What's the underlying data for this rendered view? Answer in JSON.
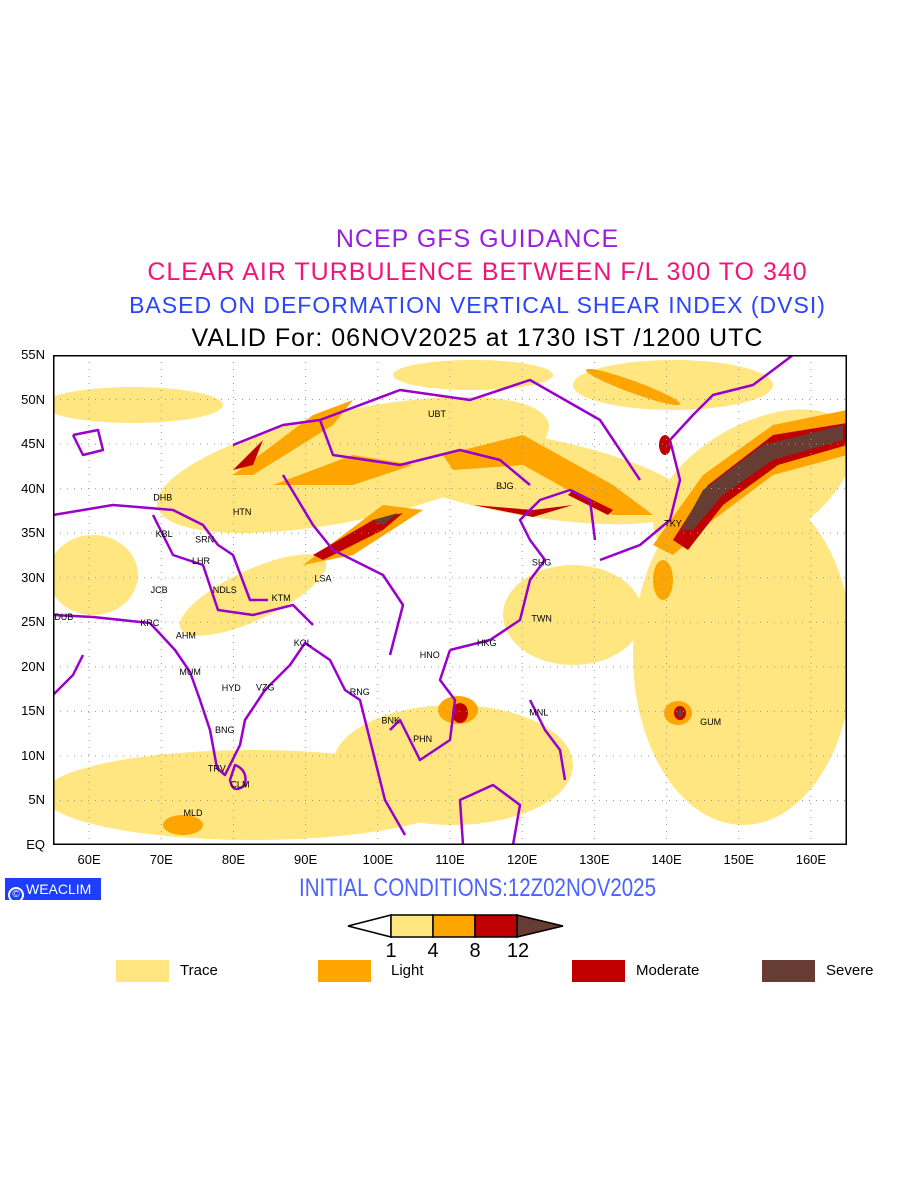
{
  "titles": {
    "line1": "NCEP GFS GUIDANCE",
    "line2": "CLEAR AIR TURBULENCE BETWEEN F/L 300 TO 340",
    "line3": "BASED ON DEFORMATION VERTICAL SHEAR INDEX (DVSI)",
    "line4": "VALID For: 06NOV2025 at 1730 IST /1200 UTC"
  },
  "colors": {
    "title1": "#9a1ee0",
    "title2": "#f0157a",
    "title3": "#2a44ff",
    "title4": "#000000",
    "coast": "#9900cc",
    "trace": "#ffe680",
    "light": "#ffa500",
    "moderate": "#c00000",
    "severe": "#663c33",
    "badge": "#1d3dff"
  },
  "map": {
    "lon_range": [
      55,
      165
    ],
    "lat_range": [
      0,
      55
    ],
    "lat_labels": [
      {
        "v": 55,
        "t": "55N"
      },
      {
        "v": 50,
        "t": "50N"
      },
      {
        "v": 45,
        "t": "45N"
      },
      {
        "v": 40,
        "t": "40N"
      },
      {
        "v": 35,
        "t": "35N"
      },
      {
        "v": 30,
        "t": "30N"
      },
      {
        "v": 25,
        "t": "25N"
      },
      {
        "v": 20,
        "t": "20N"
      },
      {
        "v": 15,
        "t": "15N"
      },
      {
        "v": 10,
        "t": "10N"
      },
      {
        "v": 5,
        "t": "5N"
      },
      {
        "v": 0,
        "t": "EQ"
      }
    ],
    "lon_labels": [
      {
        "v": 60,
        "t": "60E"
      },
      {
        "v": 70,
        "t": "70E"
      },
      {
        "v": 80,
        "t": "80E"
      },
      {
        "v": 90,
        "t": "90E"
      },
      {
        "v": 100,
        "t": "100E"
      },
      {
        "v": 110,
        "t": "110E"
      },
      {
        "v": 120,
        "t": "120E"
      },
      {
        "v": 130,
        "t": "130E"
      },
      {
        "v": 140,
        "t": "140E"
      },
      {
        "v": 150,
        "t": "150E"
      },
      {
        "v": 160,
        "t": "160E"
      }
    ],
    "stations": [
      {
        "id": "UBT",
        "lon": 108.2,
        "lat": 48.4
      },
      {
        "id": "DHB",
        "lon": 70.2,
        "lat": 39.0
      },
      {
        "id": "HTN",
        "lon": 81.2,
        "lat": 37.4
      },
      {
        "id": "KBL",
        "lon": 70.4,
        "lat": 34.9
      },
      {
        "id": "SRN",
        "lon": 76.0,
        "lat": 34.3
      },
      {
        "id": "LHR",
        "lon": 75.5,
        "lat": 31.9
      },
      {
        "id": "JCB",
        "lon": 69.7,
        "lat": 28.6
      },
      {
        "id": "NDLS",
        "lon": 78.8,
        "lat": 28.6
      },
      {
        "id": "KTM",
        "lon": 86.6,
        "lat": 27.7
      },
      {
        "id": "LSA",
        "lon": 92.4,
        "lat": 29.9
      },
      {
        "id": "DUB",
        "lon": 56.5,
        "lat": 25.6
      },
      {
        "id": "KRC",
        "lon": 68.4,
        "lat": 24.9
      },
      {
        "id": "AHM",
        "lon": 73.4,
        "lat": 23.5
      },
      {
        "id": "KOL",
        "lon": 89.6,
        "lat": 22.7
      },
      {
        "id": "MUM",
        "lon": 74.0,
        "lat": 19.4
      },
      {
        "id": "HYD",
        "lon": 79.7,
        "lat": 17.6
      },
      {
        "id": "VZG",
        "lon": 84.4,
        "lat": 17.7
      },
      {
        "id": "RNG",
        "lon": 97.5,
        "lat": 17.2
      },
      {
        "id": "HNO",
        "lon": 107.2,
        "lat": 21.3
      },
      {
        "id": "HKG",
        "lon": 115.1,
        "lat": 22.7
      },
      {
        "id": "BNK",
        "lon": 101.8,
        "lat": 14.0
      },
      {
        "id": "PHN",
        "lon": 106.2,
        "lat": 11.9
      },
      {
        "id": "MNL",
        "lon": 122.3,
        "lat": 14.9
      },
      {
        "id": "BNG",
        "lon": 78.8,
        "lat": 12.9
      },
      {
        "id": "TRV",
        "lon": 77.7,
        "lat": 8.6
      },
      {
        "id": "CLM",
        "lon": 80.9,
        "lat": 6.8
      },
      {
        "id": "MLD",
        "lon": 74.4,
        "lat": 3.6
      },
      {
        "id": "BJG",
        "lon": 117.6,
        "lat": 40.3
      },
      {
        "id": "SHG",
        "lon": 122.7,
        "lat": 31.7
      },
      {
        "id": "TWN",
        "lon": 122.7,
        "lat": 25.4
      },
      {
        "id": "TKY",
        "lon": 140.9,
        "lat": 36.1
      },
      {
        "id": "GUM",
        "lon": 146.1,
        "lat": 13.8
      }
    ]
  },
  "footer": {
    "badge": "WEACLIM",
    "badge_symbol": "©",
    "initial": "INITIAL CONDITIONS:12Z02NOV2025"
  },
  "colorbar": {
    "ticks": [
      "1",
      "4",
      "8",
      "12"
    ]
  },
  "legend": [
    {
      "label": "Trace"
    },
    {
      "label": "Light"
    },
    {
      "label": "Moderate"
    },
    {
      "label": "Severe"
    }
  ]
}
